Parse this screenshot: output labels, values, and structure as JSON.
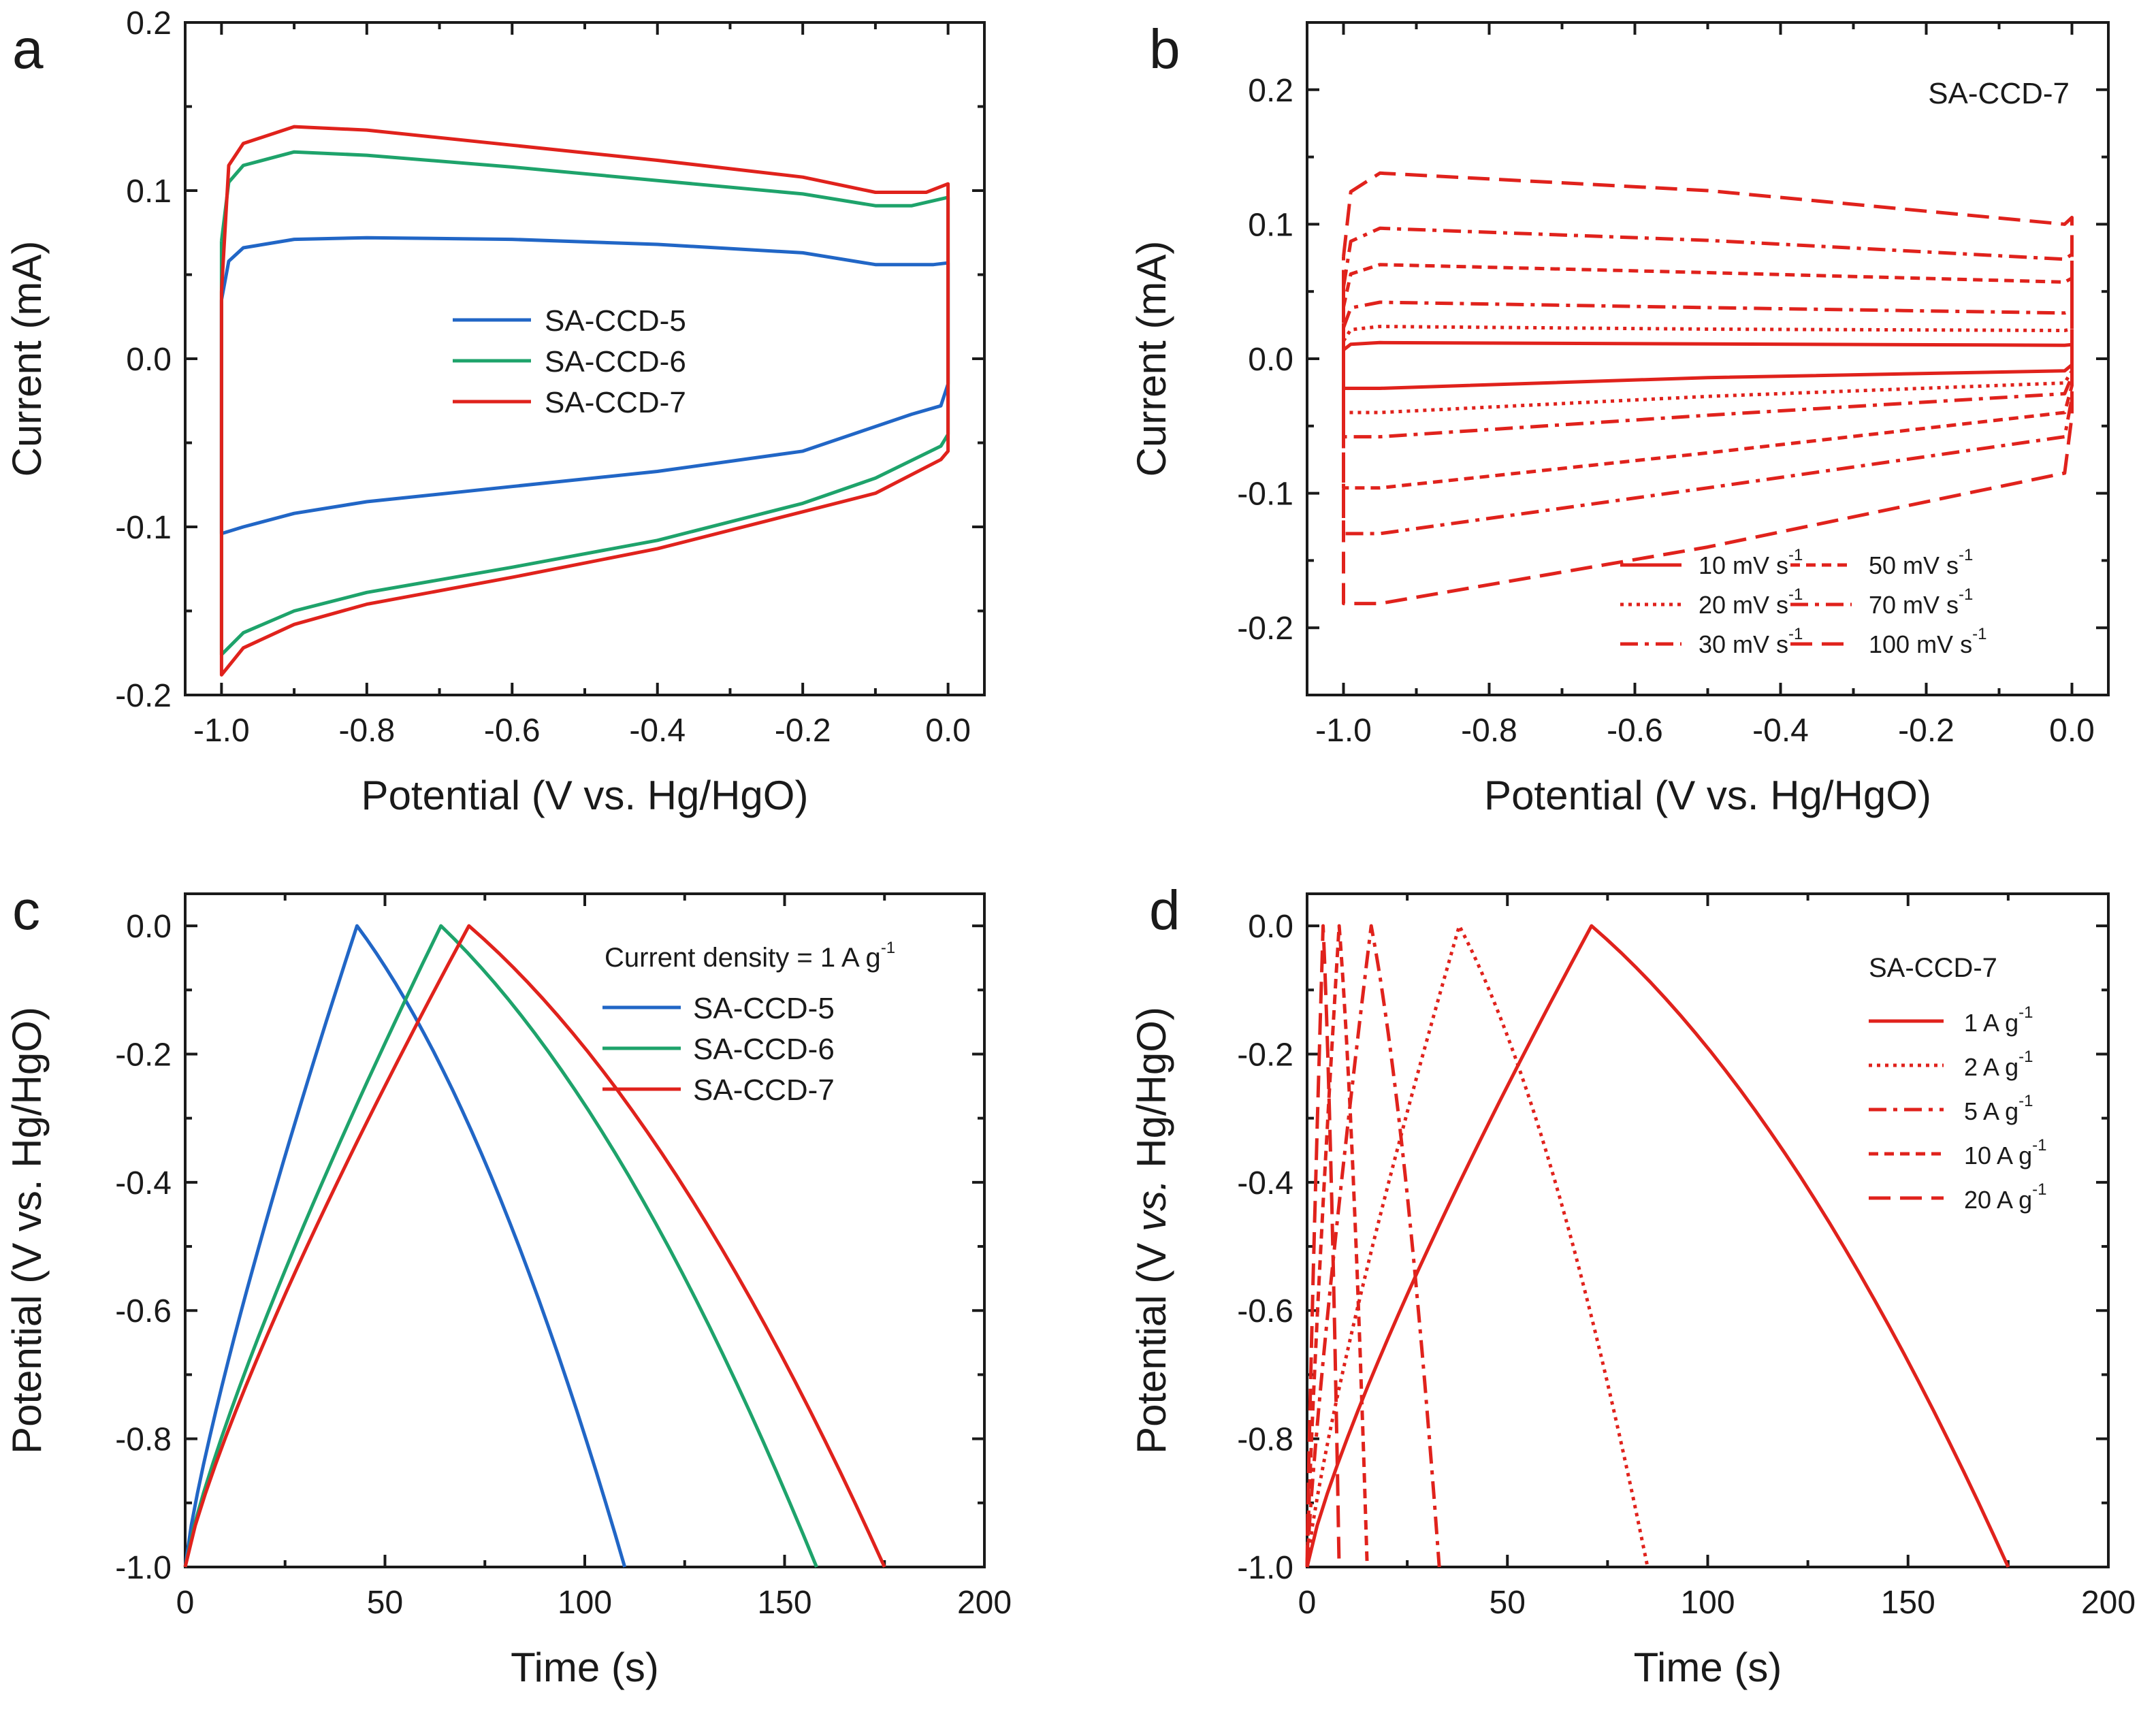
{
  "colors": {
    "SA-CCD-5": "#2166c6",
    "SA-CCD-6": "#1ea36b",
    "SA-CCD-7": "#e0221c",
    "axis": "#1a1a1a"
  },
  "chart_data": [
    {
      "panel": "a",
      "type": "line",
      "title": "",
      "xlabel": "Potential (V vs. Hg/HgO)",
      "ylabel": "Current (mA)",
      "xlim": [
        -1.05,
        0.05
      ],
      "ylim": [
        -0.2,
        0.2
      ],
      "xticks": [
        "-1.0",
        "-0.8",
        "-0.6",
        "-0.4",
        "-0.2",
        "0.0"
      ],
      "yticks": [
        "-0.2",
        "-0.1",
        "0.0",
        "0.1",
        "0.2"
      ],
      "legend": {
        "position": "center",
        "entries": [
          "SA-CCD-5",
          "SA-CCD-6",
          "SA-CCD-7"
        ]
      },
      "series": [
        {
          "name": "SA-CCD-5",
          "style": "solid",
          "forward": [
            [
              -1.0,
              0.035
            ],
            [
              -0.99,
              0.058
            ],
            [
              -0.97,
              0.066
            ],
            [
              -0.9,
              0.071
            ],
            [
              -0.8,
              0.072
            ],
            [
              -0.6,
              0.071
            ],
            [
              -0.4,
              0.068
            ],
            [
              -0.2,
              0.063
            ],
            [
              -0.1,
              0.056
            ],
            [
              -0.02,
              0.056
            ],
            [
              0.0,
              0.057
            ]
          ],
          "backward": [
            [
              0.0,
              -0.015
            ],
            [
              -0.01,
              -0.028
            ],
            [
              -0.05,
              -0.033
            ],
            [
              -0.2,
              -0.055
            ],
            [
              -0.4,
              -0.067
            ],
            [
              -0.6,
              -0.076
            ],
            [
              -0.8,
              -0.085
            ],
            [
              -0.9,
              -0.092
            ],
            [
              -0.97,
              -0.1
            ],
            [
              -1.0,
              -0.104
            ]
          ]
        },
        {
          "name": "SA-CCD-6",
          "style": "solid",
          "forward": [
            [
              -1.0,
              0.07
            ],
            [
              -0.99,
              0.105
            ],
            [
              -0.97,
              0.115
            ],
            [
              -0.9,
              0.123
            ],
            [
              -0.8,
              0.121
            ],
            [
              -0.6,
              0.114
            ],
            [
              -0.4,
              0.106
            ],
            [
              -0.2,
              0.098
            ],
            [
              -0.1,
              0.091
            ],
            [
              -0.05,
              0.091
            ],
            [
              0.0,
              0.096
            ]
          ],
          "backward": [
            [
              0.0,
              -0.045
            ],
            [
              -0.01,
              -0.052
            ],
            [
              -0.1,
              -0.071
            ],
            [
              -0.2,
              -0.086
            ],
            [
              -0.4,
              -0.108
            ],
            [
              -0.6,
              -0.124
            ],
            [
              -0.8,
              -0.139
            ],
            [
              -0.9,
              -0.15
            ],
            [
              -0.97,
              -0.163
            ],
            [
              -1.0,
              -0.176
            ]
          ]
        },
        {
          "name": "SA-CCD-7",
          "style": "solid",
          "forward": [
            [
              -1.0,
              0.04
            ],
            [
              -0.99,
              0.115
            ],
            [
              -0.97,
              0.128
            ],
            [
              -0.9,
              0.138
            ],
            [
              -0.8,
              0.136
            ],
            [
              -0.6,
              0.127
            ],
            [
              -0.4,
              0.118
            ],
            [
              -0.2,
              0.108
            ],
            [
              -0.1,
              0.099
            ],
            [
              -0.03,
              0.099
            ],
            [
              0.0,
              0.104
            ]
          ],
          "backward": [
            [
              0.0,
              -0.055
            ],
            [
              -0.01,
              -0.06
            ],
            [
              -0.1,
              -0.08
            ],
            [
              -0.2,
              -0.091
            ],
            [
              -0.4,
              -0.113
            ],
            [
              -0.6,
              -0.13
            ],
            [
              -0.8,
              -0.146
            ],
            [
              -0.9,
              -0.158
            ],
            [
              -0.97,
              -0.172
            ],
            [
              -1.0,
              -0.188
            ]
          ]
        }
      ]
    },
    {
      "panel": "b",
      "type": "line",
      "title": "",
      "annotation": "SA-CCD-7",
      "xlabel": "Potential (V vs. Hg/HgO)",
      "ylabel": "Current (mA)",
      "xlim": [
        -1.05,
        0.05
      ],
      "ylim": [
        -0.25,
        0.25
      ],
      "xticks": [
        "-1.0",
        "-0.8",
        "-0.6",
        "-0.4",
        "-0.2",
        "0.0"
      ],
      "yticks": [
        "-0.2",
        "-0.1",
        "0.0",
        "0.1",
        "0.2"
      ],
      "legend": {
        "position": "bottom-right",
        "unit_text": "mV s",
        "sup_text": "-1"
      },
      "series": [
        {
          "name": "10",
          "style": "solid",
          "top": [
            0.012,
            0.011,
            0.01
          ],
          "bottom": [
            -0.022,
            -0.014,
            -0.009
          ]
        },
        {
          "name": "20",
          "style": "dotted",
          "top": [
            0.024,
            0.022,
            0.021
          ],
          "bottom": [
            -0.04,
            -0.028,
            -0.018
          ]
        },
        {
          "name": "30",
          "style": "dashdot",
          "top": [
            0.042,
            0.038,
            0.034
          ],
          "bottom": [
            -0.058,
            -0.042,
            -0.026
          ]
        },
        {
          "name": "50",
          "style": "shortdash",
          "top": [
            0.07,
            0.064,
            0.057
          ],
          "bottom": [
            -0.096,
            -0.07,
            -0.04
          ]
        },
        {
          "name": "70",
          "style": "dashdot",
          "top": [
            0.097,
            0.088,
            0.074
          ],
          "bottom": [
            -0.13,
            -0.096,
            -0.058
          ]
        },
        {
          "name": "100",
          "style": "longdash",
          "top": [
            0.138,
            0.125,
            0.1
          ],
          "bottom": [
            -0.182,
            -0.14,
            -0.085
          ]
        }
      ]
    },
    {
      "panel": "c",
      "type": "line",
      "title": "",
      "xlabel": "Time (s)",
      "ylabel": "Potential (V vs. Hg/HgO)",
      "xlim": [
        0,
        200
      ],
      "ylim": [
        -1.0,
        0.05
      ],
      "xticks": [
        "0",
        "50",
        "100",
        "150",
        "200"
      ],
      "yticks": [
        "-1.0",
        "-0.8",
        "-0.6",
        "-0.4",
        "-0.2",
        "0.0"
      ],
      "legend": {
        "position": "top-right",
        "title": "Current density = 1 A g",
        "title_sup": "-1",
        "entries": [
          "SA-CCD-5",
          "SA-CCD-6",
          "SA-CCD-7"
        ]
      },
      "series": [
        {
          "name": "SA-CCD-5",
          "style": "solid",
          "peak_time": 43,
          "end_time": 110
        },
        {
          "name": "SA-CCD-6",
          "style": "solid",
          "peak_time": 64,
          "end_time": 158
        },
        {
          "name": "SA-CCD-7",
          "style": "solid",
          "peak_time": 71,
          "end_time": 175
        }
      ]
    },
    {
      "panel": "d",
      "type": "line",
      "title": "",
      "xlabel": "Time (s)",
      "ylabel_parts": [
        "Potential (V ",
        "vs.",
        " Hg/HgO)"
      ],
      "xlim": [
        0,
        200
      ],
      "ylim": [
        -1.0,
        0.05
      ],
      "xticks": [
        "0",
        "50",
        "100",
        "150",
        "200"
      ],
      "yticks": [
        "-1.0",
        "-0.8",
        "-0.6",
        "-0.4",
        "-0.2",
        "0.0"
      ],
      "legend": {
        "position": "top-right",
        "title": "SA-CCD-7",
        "unit_text": "A g",
        "sup_text": "-1"
      },
      "series": [
        {
          "name": "1",
          "style": "solid",
          "peak_time": 71,
          "end_time": 175
        },
        {
          "name": "2",
          "style": "dotted",
          "peak_time": 38,
          "end_time": 85
        },
        {
          "name": "5",
          "style": "dashdot",
          "peak_time": 16,
          "end_time": 33
        },
        {
          "name": "10",
          "style": "shortdash",
          "peak_time": 8,
          "end_time": 15
        },
        {
          "name": "20",
          "style": "longdash",
          "peak_time": 4,
          "end_time": 8
        }
      ]
    }
  ]
}
